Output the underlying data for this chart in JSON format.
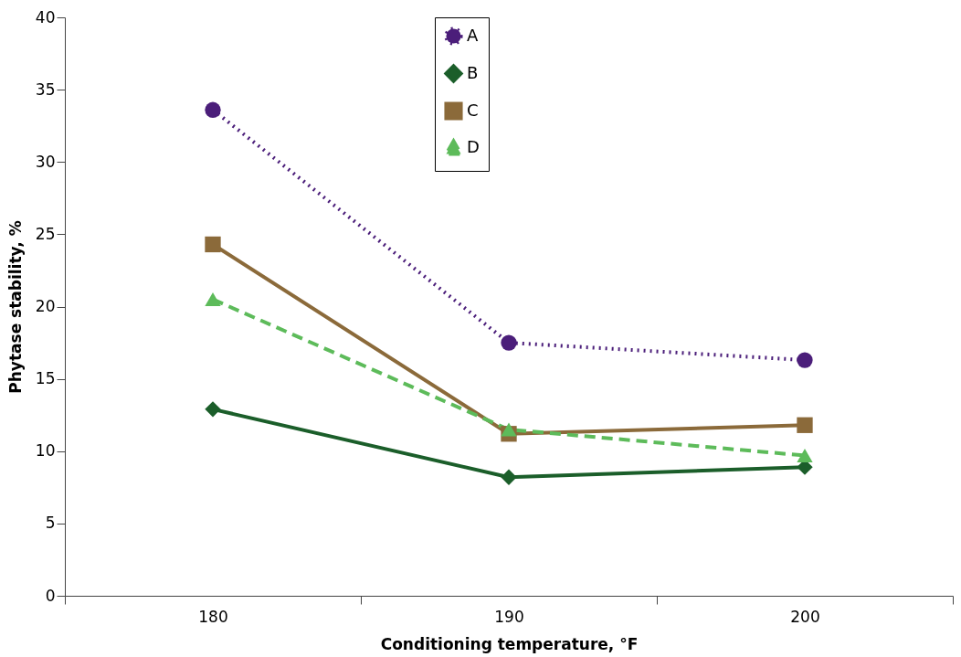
{
  "chart_data": {
    "type": "line",
    "xlabel": "Conditioning temperature, °F",
    "ylabel": "Phytase stability, %",
    "categories": [
      "180",
      "190",
      "200"
    ],
    "ylim": [
      0,
      40
    ],
    "yticks": [
      0,
      5,
      10,
      15,
      20,
      25,
      30,
      35,
      40
    ],
    "grid": false,
    "legend": "top",
    "series": [
      {
        "name": "A",
        "color": "#4b1e7a",
        "marker": "circle",
        "line_style": "dotted",
        "values": [
          33.6,
          17.5,
          16.3
        ]
      },
      {
        "name": "B",
        "color": "#1b5e2a",
        "marker": "diamond",
        "line_style": "solid",
        "values": [
          12.9,
          8.2,
          8.9
        ]
      },
      {
        "name": "C",
        "color": "#8b6a3a",
        "marker": "square",
        "line_style": "solid",
        "values": [
          24.3,
          11.2,
          11.8
        ]
      },
      {
        "name": "D",
        "color": "#5dbb5a",
        "marker": "triangle",
        "line_style": "dashed",
        "values": [
          20.5,
          11.5,
          9.7
        ]
      }
    ]
  }
}
